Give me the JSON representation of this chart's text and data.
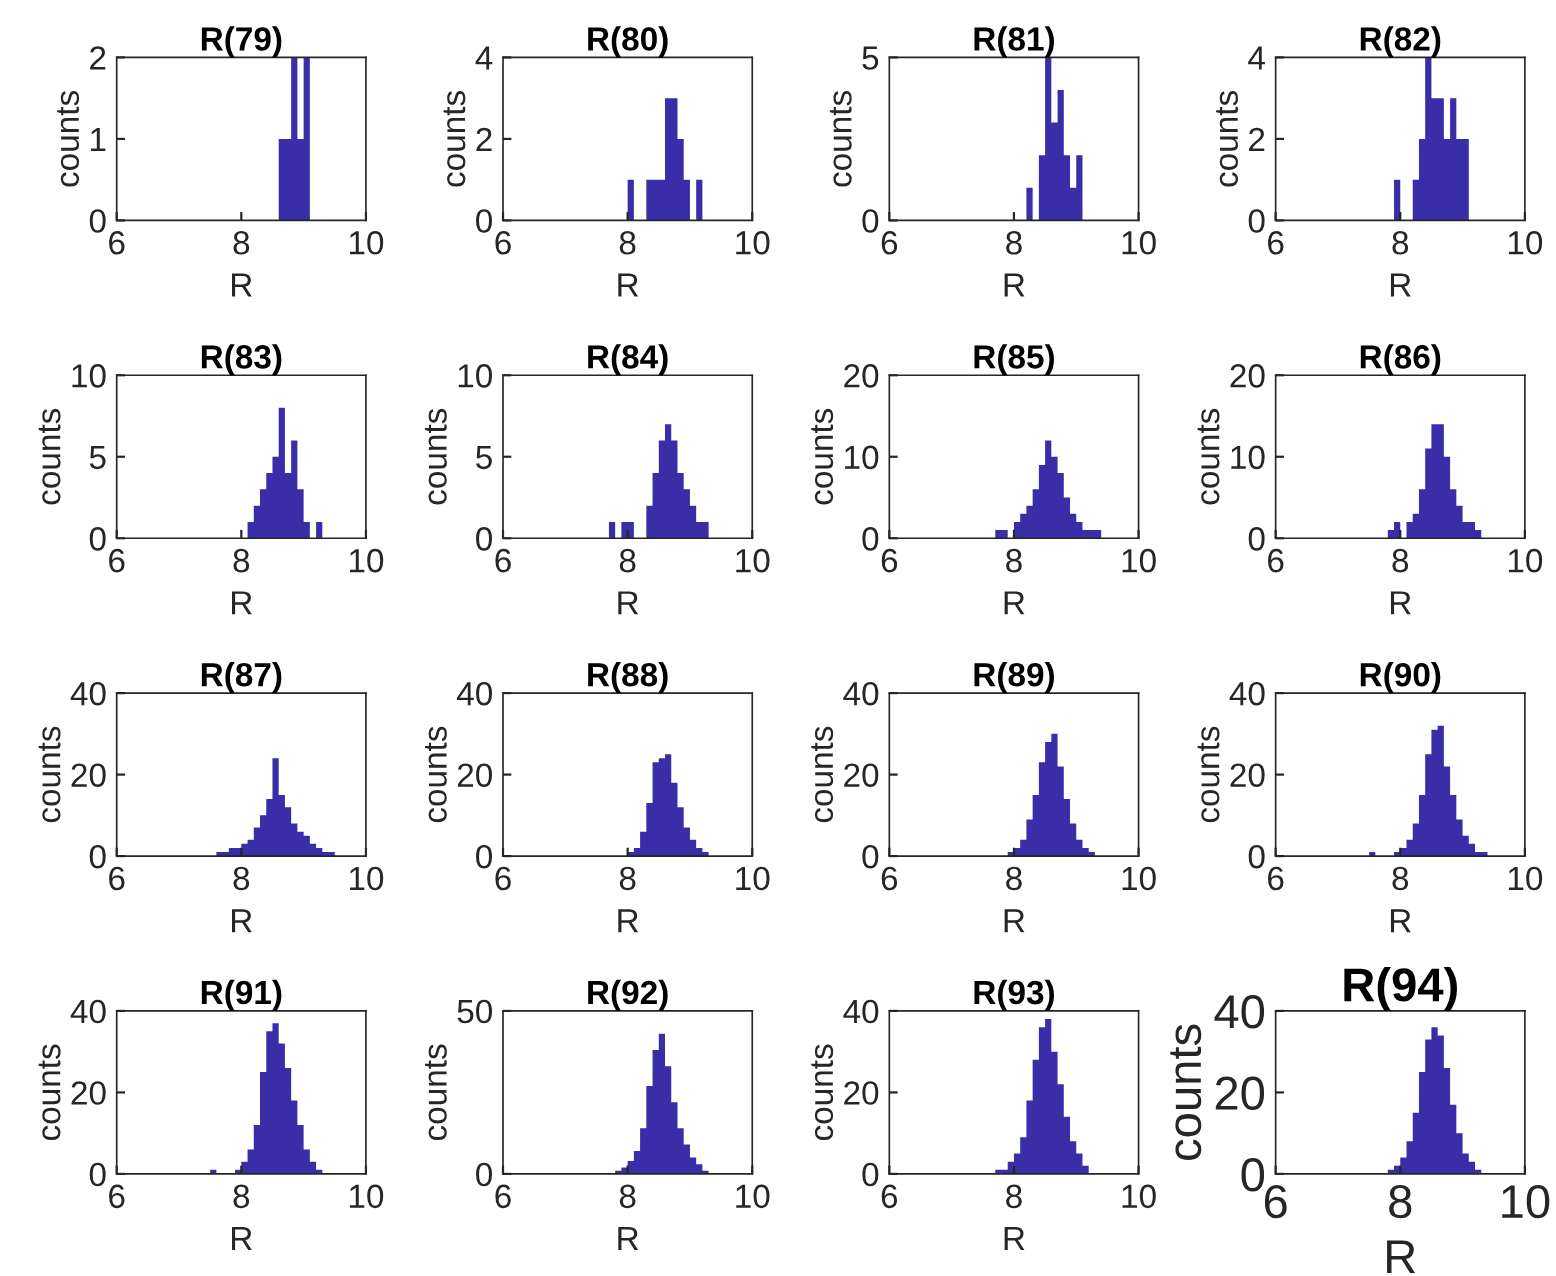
{
  "chart_data": [
    {
      "type": "histogram",
      "title": "R(79)",
      "xlabel": "R",
      "ylabel": "counts",
      "color": "#3a2ea8",
      "xlim": [
        6,
        10
      ],
      "xticks": [
        6,
        8,
        10
      ],
      "ylim": [
        0,
        2
      ],
      "yticks": [
        0,
        1,
        2
      ],
      "bins": [
        7.4,
        7.5,
        7.6,
        7.7,
        7.8,
        7.9,
        8.0,
        8.1,
        8.2,
        8.3,
        8.4,
        8.5,
        8.6,
        8.7,
        8.8,
        8.9,
        9.0,
        9.1,
        9.2,
        9.3,
        9.4,
        9.5,
        9.6
      ],
      "values": [
        0,
        0,
        0,
        0,
        0,
        0,
        0,
        0,
        0,
        0,
        0,
        0,
        1,
        1,
        2,
        1,
        2,
        0,
        0,
        0,
        0,
        0
      ]
    },
    {
      "type": "histogram",
      "title": "R(80)",
      "xlabel": "R",
      "ylabel": "counts",
      "color": "#3a2ea8",
      "xlim": [
        6,
        10
      ],
      "xticks": [
        6,
        8,
        10
      ],
      "ylim": [
        0,
        4
      ],
      "yticks": [
        0,
        2,
        4
      ],
      "bins": [
        7.4,
        7.5,
        7.6,
        7.7,
        7.8,
        7.9,
        8.0,
        8.1,
        8.2,
        8.3,
        8.4,
        8.5,
        8.6,
        8.7,
        8.8,
        8.9,
        9.0,
        9.1,
        9.2,
        9.3,
        9.4,
        9.5,
        9.6
      ],
      "values": [
        0,
        0,
        0,
        0,
        0,
        0,
        1,
        0,
        0,
        1,
        1,
        1,
        3,
        3,
        2,
        1,
        0,
        1,
        0,
        0,
        0,
        0
      ]
    },
    {
      "type": "histogram",
      "title": "R(81)",
      "xlabel": "R",
      "ylabel": "counts",
      "color": "#3a2ea8",
      "xlim": [
        6,
        10
      ],
      "xticks": [
        6,
        8,
        10
      ],
      "ylim": [
        0,
        5
      ],
      "yticks": [
        0,
        5
      ],
      "bins": [
        7.4,
        7.5,
        7.6,
        7.7,
        7.8,
        7.9,
        8.0,
        8.1,
        8.2,
        8.3,
        8.4,
        8.5,
        8.6,
        8.7,
        8.8,
        8.9,
        9.0,
        9.1,
        9.2,
        9.3,
        9.4,
        9.5,
        9.6
      ],
      "values": [
        0,
        0,
        0,
        0,
        0,
        0,
        0,
        0,
        1,
        0,
        2,
        5,
        3,
        4,
        2,
        1,
        2,
        0,
        0,
        0,
        0,
        0
      ]
    },
    {
      "type": "histogram",
      "title": "R(82)",
      "xlabel": "R",
      "ylabel": "counts",
      "color": "#3a2ea8",
      "xlim": [
        6,
        10
      ],
      "xticks": [
        6,
        8,
        10
      ],
      "ylim": [
        0,
        4
      ],
      "yticks": [
        0,
        2,
        4
      ],
      "bins": [
        7.4,
        7.5,
        7.6,
        7.7,
        7.8,
        7.9,
        8.0,
        8.1,
        8.2,
        8.3,
        8.4,
        8.5,
        8.6,
        8.7,
        8.8,
        8.9,
        9.0,
        9.1,
        9.2,
        9.3,
        9.4,
        9.5,
        9.6
      ],
      "values": [
        0,
        0,
        0,
        0,
        0,
        1,
        0,
        0,
        1,
        2,
        4,
        3,
        3,
        2,
        3,
        2,
        2,
        0,
        0,
        0,
        0,
        0
      ]
    },
    {
      "type": "histogram",
      "title": "R(83)",
      "xlabel": "R",
      "ylabel": "counts",
      "color": "#3a2ea8",
      "xlim": [
        6,
        10
      ],
      "xticks": [
        6,
        8,
        10
      ],
      "ylim": [
        0,
        10
      ],
      "yticks": [
        0,
        5,
        10
      ],
      "bins": [
        7.4,
        7.5,
        7.6,
        7.7,
        7.8,
        7.9,
        8.0,
        8.1,
        8.2,
        8.3,
        8.4,
        8.5,
        8.6,
        8.7,
        8.8,
        8.9,
        9.0,
        9.1,
        9.2,
        9.3,
        9.4,
        9.5,
        9.6
      ],
      "values": [
        0,
        0,
        0,
        0,
        0,
        0,
        0,
        1,
        2,
        3,
        4,
        5,
        8,
        4,
        6,
        3,
        1,
        0,
        1,
        0,
        0,
        0
      ]
    },
    {
      "type": "histogram",
      "title": "R(84)",
      "xlabel": "R",
      "ylabel": "counts",
      "color": "#3a2ea8",
      "xlim": [
        6,
        10
      ],
      "xticks": [
        6,
        8,
        10
      ],
      "ylim": [
        0,
        10
      ],
      "yticks": [
        0,
        5,
        10
      ],
      "bins": [
        7.4,
        7.5,
        7.6,
        7.7,
        7.8,
        7.9,
        8.0,
        8.1,
        8.2,
        8.3,
        8.4,
        8.5,
        8.6,
        8.7,
        8.8,
        8.9,
        9.0,
        9.1,
        9.2,
        9.3,
        9.4,
        9.5,
        9.6
      ],
      "values": [
        0,
        0,
        0,
        1,
        0,
        1,
        1,
        0,
        0,
        2,
        4,
        6,
        7,
        6,
        4,
        3,
        2,
        1,
        1,
        0,
        0,
        0
      ]
    },
    {
      "type": "histogram",
      "title": "R(85)",
      "xlabel": "R",
      "ylabel": "counts",
      "color": "#3a2ea8",
      "xlim": [
        6,
        10
      ],
      "xticks": [
        6,
        8,
        10
      ],
      "ylim": [
        0,
        20
      ],
      "yticks": [
        0,
        10,
        20
      ],
      "bins": [
        7.4,
        7.5,
        7.6,
        7.7,
        7.8,
        7.9,
        8.0,
        8.1,
        8.2,
        8.3,
        8.4,
        8.5,
        8.6,
        8.7,
        8.8,
        8.9,
        9.0,
        9.1,
        9.2,
        9.3,
        9.4,
        9.5,
        9.6
      ],
      "values": [
        0,
        0,
        0,
        1,
        1,
        0,
        2,
        3,
        4,
        6,
        9,
        12,
        10,
        8,
        5,
        3,
        2,
        1,
        1,
        1,
        0,
        0
      ]
    },
    {
      "type": "histogram",
      "title": "R(86)",
      "xlabel": "R",
      "ylabel": "counts",
      "color": "#3a2ea8",
      "xlim": [
        6,
        10
      ],
      "xticks": [
        6,
        8,
        10
      ],
      "ylim": [
        0,
        20
      ],
      "yticks": [
        0,
        10,
        20
      ],
      "bins": [
        7.4,
        7.5,
        7.6,
        7.7,
        7.8,
        7.9,
        8.0,
        8.1,
        8.2,
        8.3,
        8.4,
        8.5,
        8.6,
        8.7,
        8.8,
        8.9,
        9.0,
        9.1,
        9.2,
        9.3,
        9.4,
        9.5,
        9.6
      ],
      "values": [
        0,
        0,
        0,
        0,
        1,
        2,
        0,
        2,
        3,
        6,
        11,
        14,
        14,
        10,
        6,
        4,
        2,
        2,
        1,
        0,
        0,
        0
      ]
    },
    {
      "type": "histogram",
      "title": "R(87)",
      "xlabel": "R",
      "ylabel": "counts",
      "color": "#3a2ea8",
      "xlim": [
        6,
        10
      ],
      "xticks": [
        6,
        8,
        10
      ],
      "ylim": [
        0,
        40
      ],
      "yticks": [
        0,
        20,
        40
      ],
      "bins": [
        7.4,
        7.5,
        7.6,
        7.7,
        7.8,
        7.9,
        8.0,
        8.1,
        8.2,
        8.3,
        8.4,
        8.5,
        8.6,
        8.7,
        8.8,
        8.9,
        9.0,
        9.1,
        9.2,
        9.3,
        9.4,
        9.5,
        9.6
      ],
      "values": [
        0,
        0,
        1,
        1,
        2,
        2,
        3,
        4,
        7,
        10,
        14,
        24,
        15,
        12,
        8,
        6,
        5,
        3,
        2,
        1,
        1,
        0
      ]
    },
    {
      "type": "histogram",
      "title": "R(88)",
      "xlabel": "R",
      "ylabel": "counts",
      "color": "#3a2ea8",
      "xlim": [
        6,
        10
      ],
      "xticks": [
        6,
        8,
        10
      ],
      "ylim": [
        0,
        40
      ],
      "yticks": [
        0,
        20,
        40
      ],
      "bins": [
        7.4,
        7.5,
        7.6,
        7.7,
        7.8,
        7.9,
        8.0,
        8.1,
        8.2,
        8.3,
        8.4,
        8.5,
        8.6,
        8.7,
        8.8,
        8.9,
        9.0,
        9.1,
        9.2,
        9.3,
        9.4,
        9.5,
        9.6
      ],
      "values": [
        0,
        0,
        0,
        0,
        0,
        0,
        1,
        2,
        6,
        13,
        23,
        24,
        25,
        18,
        12,
        7,
        4,
        2,
        1,
        0,
        0,
        0
      ]
    },
    {
      "type": "histogram",
      "title": "R(89)",
      "xlabel": "R",
      "ylabel": "counts",
      "color": "#3a2ea8",
      "xlim": [
        6,
        10
      ],
      "xticks": [
        6,
        8,
        10
      ],
      "ylim": [
        0,
        40
      ],
      "yticks": [
        0,
        20,
        40
      ],
      "bins": [
        7.4,
        7.5,
        7.6,
        7.7,
        7.8,
        7.9,
        8.0,
        8.1,
        8.2,
        8.3,
        8.4,
        8.5,
        8.6,
        8.7,
        8.8,
        8.9,
        9.0,
        9.1,
        9.2,
        9.3,
        9.4,
        9.5,
        9.6
      ],
      "values": [
        0,
        0,
        0,
        0,
        0,
        1,
        2,
        4,
        9,
        15,
        23,
        28,
        30,
        22,
        14,
        8,
        4,
        2,
        1,
        0,
        0,
        0
      ]
    },
    {
      "type": "histogram",
      "title": "R(90)",
      "xlabel": "R",
      "ylabel": "counts",
      "color": "#3a2ea8",
      "xlim": [
        6,
        10
      ],
      "xticks": [
        6,
        8,
        10
      ],
      "ylim": [
        0,
        40
      ],
      "yticks": [
        0,
        20,
        40
      ],
      "bins": [
        7.4,
        7.5,
        7.6,
        7.7,
        7.8,
        7.9,
        8.0,
        8.1,
        8.2,
        8.3,
        8.4,
        8.5,
        8.6,
        8.7,
        8.8,
        8.9,
        9.0,
        9.1,
        9.2,
        9.3,
        9.4,
        9.5,
        9.6
      ],
      "values": [
        0,
        1,
        0,
        0,
        0,
        1,
        2,
        4,
        8,
        15,
        25,
        31,
        32,
        22,
        15,
        9,
        5,
        3,
        1,
        1,
        0,
        0
      ]
    },
    {
      "type": "histogram",
      "title": "R(91)",
      "xlabel": "R",
      "ylabel": "counts",
      "color": "#3a2ea8",
      "xlim": [
        6,
        10
      ],
      "xticks": [
        6,
        8,
        10
      ],
      "ylim": [
        0,
        40
      ],
      "yticks": [
        0,
        20,
        40
      ],
      "bins": [
        7.4,
        7.5,
        7.6,
        7.7,
        7.8,
        7.9,
        8.0,
        8.1,
        8.2,
        8.3,
        8.4,
        8.5,
        8.6,
        8.7,
        8.8,
        8.9,
        9.0,
        9.1,
        9.2,
        9.3,
        9.4,
        9.5,
        9.6
      ],
      "values": [
        0,
        1,
        0,
        0,
        0,
        1,
        3,
        6,
        12,
        25,
        35,
        37,
        32,
        26,
        18,
        12,
        6,
        3,
        1,
        0,
        0,
        0
      ]
    },
    {
      "type": "histogram",
      "title": "R(92)",
      "xlabel": "R",
      "ylabel": "counts",
      "color": "#3a2ea8",
      "xlim": [
        6,
        10
      ],
      "xticks": [
        6,
        8,
        10
      ],
      "ylim": [
        0,
        50
      ],
      "yticks": [
        0,
        50
      ],
      "bins": [
        7.4,
        7.5,
        7.6,
        7.7,
        7.8,
        7.9,
        8.0,
        8.1,
        8.2,
        8.3,
        8.4,
        8.5,
        8.6,
        8.7,
        8.8,
        8.9,
        9.0,
        9.1,
        9.2,
        9.3,
        9.4,
        9.5,
        9.6
      ],
      "values": [
        0,
        0,
        0,
        0,
        1,
        2,
        4,
        7,
        14,
        27,
        38,
        43,
        33,
        22,
        14,
        9,
        5,
        3,
        1,
        0,
        0,
        0
      ]
    },
    {
      "type": "histogram",
      "title": "R(93)",
      "xlabel": "R",
      "ylabel": "counts",
      "color": "#3a2ea8",
      "xlim": [
        6,
        10
      ],
      "xticks": [
        6,
        8,
        10
      ],
      "ylim": [
        0,
        40
      ],
      "yticks": [
        0,
        20,
        40
      ],
      "bins": [
        7.4,
        7.5,
        7.6,
        7.7,
        7.8,
        7.9,
        8.0,
        8.1,
        8.2,
        8.3,
        8.4,
        8.5,
        8.6,
        8.7,
        8.8,
        8.9,
        9.0,
        9.1,
        9.2,
        9.3,
        9.4,
        9.5,
        9.6
      ],
      "values": [
        0,
        0,
        0,
        1,
        1,
        3,
        5,
        9,
        18,
        28,
        36,
        38,
        30,
        22,
        14,
        8,
        5,
        2,
        0,
        0,
        0,
        0
      ]
    },
    {
      "type": "histogram",
      "title": "R(94)",
      "xlabel": "R",
      "ylabel": "counts",
      "color": "#3a2ea8",
      "xlim": [
        6,
        10
      ],
      "xticks": [
        6,
        8,
        10
      ],
      "ylim": [
        0,
        40
      ],
      "yticks": [
        0,
        20,
        40
      ],
      "bins": [
        7.4,
        7.5,
        7.6,
        7.7,
        7.8,
        7.9,
        8.0,
        8.1,
        8.2,
        8.3,
        8.4,
        8.5,
        8.6,
        8.7,
        8.8,
        8.9,
        9.0,
        9.1,
        9.2,
        9.3,
        9.4,
        9.5,
        9.6
      ],
      "values": [
        0,
        0,
        0,
        0,
        1,
        2,
        4,
        8,
        15,
        25,
        33,
        36,
        34,
        26,
        17,
        10,
        5,
        3,
        1,
        0,
        0,
        0
      ]
    }
  ]
}
